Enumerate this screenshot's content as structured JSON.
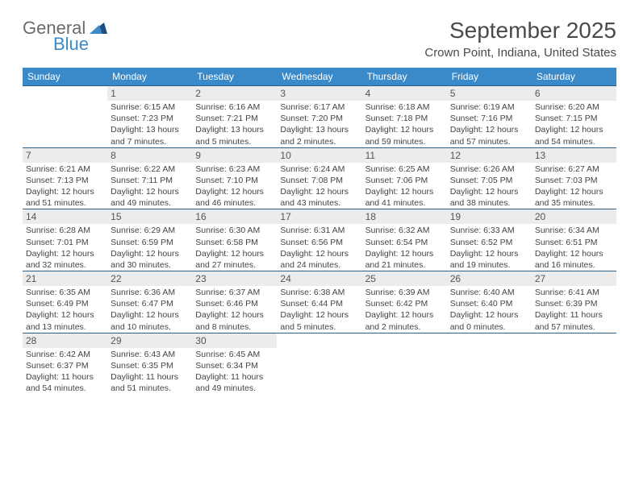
{
  "logo": {
    "word1": "General",
    "word2": "Blue"
  },
  "title": "September 2025",
  "location": "Crown Point, Indiana, United States",
  "colors": {
    "header_bg": "#3a8ac9",
    "header_text": "#ffffff",
    "daynum_bg": "#ececec",
    "row_border": "#2e5f87",
    "logo_gray": "#6b6b6b",
    "logo_blue": "#3a8ac9"
  },
  "weekdays": [
    "Sunday",
    "Monday",
    "Tuesday",
    "Wednesday",
    "Thursday",
    "Friday",
    "Saturday"
  ],
  "weeks": [
    [
      null,
      {
        "day": "1",
        "sunrise": "Sunrise: 6:15 AM",
        "sunset": "Sunset: 7:23 PM",
        "dl1": "Daylight: 13 hours",
        "dl2": "and 7 minutes."
      },
      {
        "day": "2",
        "sunrise": "Sunrise: 6:16 AM",
        "sunset": "Sunset: 7:21 PM",
        "dl1": "Daylight: 13 hours",
        "dl2": "and 5 minutes."
      },
      {
        "day": "3",
        "sunrise": "Sunrise: 6:17 AM",
        "sunset": "Sunset: 7:20 PM",
        "dl1": "Daylight: 13 hours",
        "dl2": "and 2 minutes."
      },
      {
        "day": "4",
        "sunrise": "Sunrise: 6:18 AM",
        "sunset": "Sunset: 7:18 PM",
        "dl1": "Daylight: 12 hours",
        "dl2": "and 59 minutes."
      },
      {
        "day": "5",
        "sunrise": "Sunrise: 6:19 AM",
        "sunset": "Sunset: 7:16 PM",
        "dl1": "Daylight: 12 hours",
        "dl2": "and 57 minutes."
      },
      {
        "day": "6",
        "sunrise": "Sunrise: 6:20 AM",
        "sunset": "Sunset: 7:15 PM",
        "dl1": "Daylight: 12 hours",
        "dl2": "and 54 minutes."
      }
    ],
    [
      {
        "day": "7",
        "sunrise": "Sunrise: 6:21 AM",
        "sunset": "Sunset: 7:13 PM",
        "dl1": "Daylight: 12 hours",
        "dl2": "and 51 minutes."
      },
      {
        "day": "8",
        "sunrise": "Sunrise: 6:22 AM",
        "sunset": "Sunset: 7:11 PM",
        "dl1": "Daylight: 12 hours",
        "dl2": "and 49 minutes."
      },
      {
        "day": "9",
        "sunrise": "Sunrise: 6:23 AM",
        "sunset": "Sunset: 7:10 PM",
        "dl1": "Daylight: 12 hours",
        "dl2": "and 46 minutes."
      },
      {
        "day": "10",
        "sunrise": "Sunrise: 6:24 AM",
        "sunset": "Sunset: 7:08 PM",
        "dl1": "Daylight: 12 hours",
        "dl2": "and 43 minutes."
      },
      {
        "day": "11",
        "sunrise": "Sunrise: 6:25 AM",
        "sunset": "Sunset: 7:06 PM",
        "dl1": "Daylight: 12 hours",
        "dl2": "and 41 minutes."
      },
      {
        "day": "12",
        "sunrise": "Sunrise: 6:26 AM",
        "sunset": "Sunset: 7:05 PM",
        "dl1": "Daylight: 12 hours",
        "dl2": "and 38 minutes."
      },
      {
        "day": "13",
        "sunrise": "Sunrise: 6:27 AM",
        "sunset": "Sunset: 7:03 PM",
        "dl1": "Daylight: 12 hours",
        "dl2": "and 35 minutes."
      }
    ],
    [
      {
        "day": "14",
        "sunrise": "Sunrise: 6:28 AM",
        "sunset": "Sunset: 7:01 PM",
        "dl1": "Daylight: 12 hours",
        "dl2": "and 32 minutes."
      },
      {
        "day": "15",
        "sunrise": "Sunrise: 6:29 AM",
        "sunset": "Sunset: 6:59 PM",
        "dl1": "Daylight: 12 hours",
        "dl2": "and 30 minutes."
      },
      {
        "day": "16",
        "sunrise": "Sunrise: 6:30 AM",
        "sunset": "Sunset: 6:58 PM",
        "dl1": "Daylight: 12 hours",
        "dl2": "and 27 minutes."
      },
      {
        "day": "17",
        "sunrise": "Sunrise: 6:31 AM",
        "sunset": "Sunset: 6:56 PM",
        "dl1": "Daylight: 12 hours",
        "dl2": "and 24 minutes."
      },
      {
        "day": "18",
        "sunrise": "Sunrise: 6:32 AM",
        "sunset": "Sunset: 6:54 PM",
        "dl1": "Daylight: 12 hours",
        "dl2": "and 21 minutes."
      },
      {
        "day": "19",
        "sunrise": "Sunrise: 6:33 AM",
        "sunset": "Sunset: 6:52 PM",
        "dl1": "Daylight: 12 hours",
        "dl2": "and 19 minutes."
      },
      {
        "day": "20",
        "sunrise": "Sunrise: 6:34 AM",
        "sunset": "Sunset: 6:51 PM",
        "dl1": "Daylight: 12 hours",
        "dl2": "and 16 minutes."
      }
    ],
    [
      {
        "day": "21",
        "sunrise": "Sunrise: 6:35 AM",
        "sunset": "Sunset: 6:49 PM",
        "dl1": "Daylight: 12 hours",
        "dl2": "and 13 minutes."
      },
      {
        "day": "22",
        "sunrise": "Sunrise: 6:36 AM",
        "sunset": "Sunset: 6:47 PM",
        "dl1": "Daylight: 12 hours",
        "dl2": "and 10 minutes."
      },
      {
        "day": "23",
        "sunrise": "Sunrise: 6:37 AM",
        "sunset": "Sunset: 6:46 PM",
        "dl1": "Daylight: 12 hours",
        "dl2": "and 8 minutes."
      },
      {
        "day": "24",
        "sunrise": "Sunrise: 6:38 AM",
        "sunset": "Sunset: 6:44 PM",
        "dl1": "Daylight: 12 hours",
        "dl2": "and 5 minutes."
      },
      {
        "day": "25",
        "sunrise": "Sunrise: 6:39 AM",
        "sunset": "Sunset: 6:42 PM",
        "dl1": "Daylight: 12 hours",
        "dl2": "and 2 minutes."
      },
      {
        "day": "26",
        "sunrise": "Sunrise: 6:40 AM",
        "sunset": "Sunset: 6:40 PM",
        "dl1": "Daylight: 12 hours",
        "dl2": "and 0 minutes."
      },
      {
        "day": "27",
        "sunrise": "Sunrise: 6:41 AM",
        "sunset": "Sunset: 6:39 PM",
        "dl1": "Daylight: 11 hours",
        "dl2": "and 57 minutes."
      }
    ],
    [
      {
        "day": "28",
        "sunrise": "Sunrise: 6:42 AM",
        "sunset": "Sunset: 6:37 PM",
        "dl1": "Daylight: 11 hours",
        "dl2": "and 54 minutes."
      },
      {
        "day": "29",
        "sunrise": "Sunrise: 6:43 AM",
        "sunset": "Sunset: 6:35 PM",
        "dl1": "Daylight: 11 hours",
        "dl2": "and 51 minutes."
      },
      {
        "day": "30",
        "sunrise": "Sunrise: 6:45 AM",
        "sunset": "Sunset: 6:34 PM",
        "dl1": "Daylight: 11 hours",
        "dl2": "and 49 minutes."
      },
      null,
      null,
      null,
      null
    ]
  ]
}
